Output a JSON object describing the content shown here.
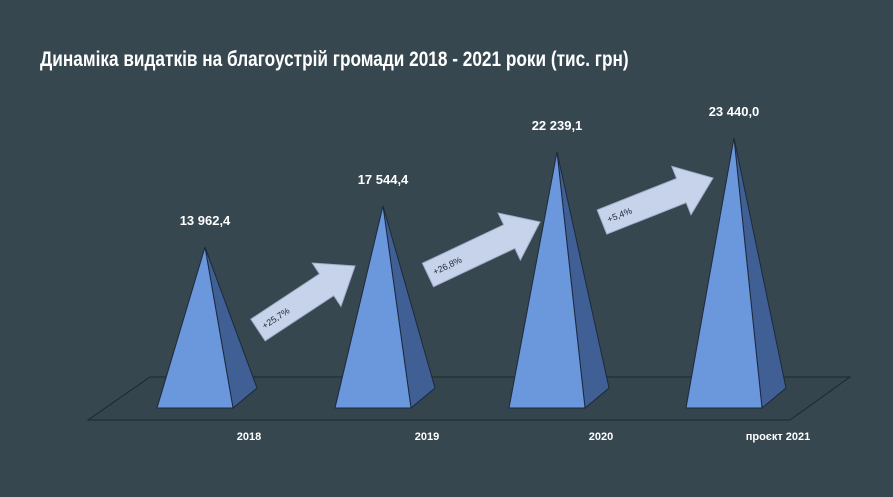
{
  "chart_data": {
    "type": "bar",
    "title": "Динаміка видатків на благоустрій громади 2018 - 2021 роки (тис. грн)",
    "categories": [
      "2018",
      "2019",
      "2020",
      "проєкт 2021"
    ],
    "values": [
      13962.4,
      17544.4,
      22239.1,
      23440.0
    ],
    "value_labels": [
      "13 962,4",
      "17 544,4",
      "22 239,1",
      "23 440,0"
    ],
    "growth_labels": [
      "+25,7%",
      "+26,8%",
      "+5,4%"
    ],
    "bar_shape": "pyramid",
    "grid": false,
    "legend": "none",
    "colors": {
      "front": "#6b97dc",
      "side": "#3f5f95",
      "arrow": "#c7d3ea",
      "floor": "#34454e",
      "background": "#37474f"
    }
  }
}
